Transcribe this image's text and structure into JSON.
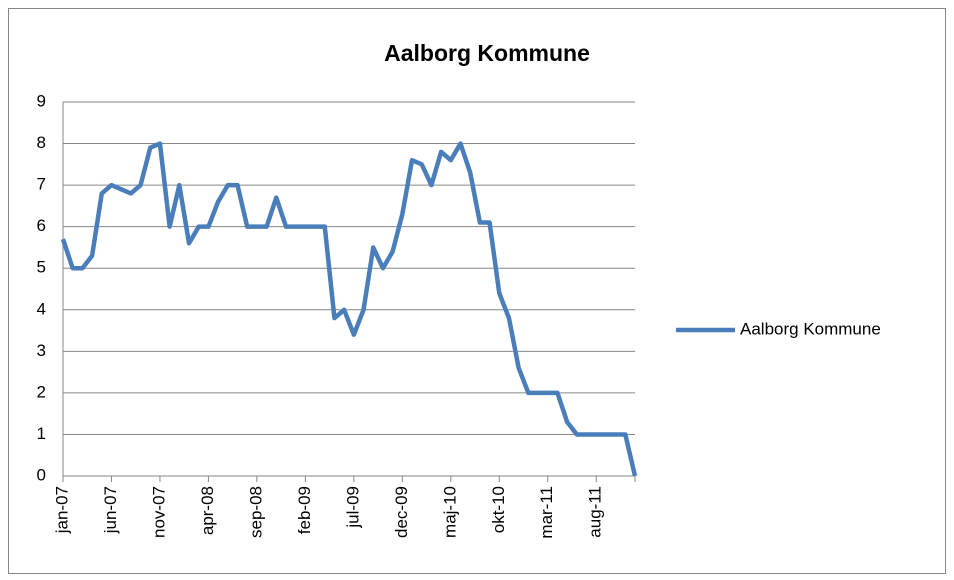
{
  "chart_data": {
    "type": "line",
    "title": "Aalborg Kommune",
    "categories": [
      "jan-07",
      null,
      null,
      null,
      null,
      "jun-07",
      null,
      null,
      null,
      null,
      "nov-07",
      null,
      null,
      null,
      null,
      "apr-08",
      null,
      null,
      null,
      null,
      "sep-08",
      null,
      null,
      null,
      null,
      "feb-09",
      null,
      null,
      null,
      null,
      "jul-09",
      null,
      null,
      null,
      null,
      "dec-09",
      null,
      null,
      null,
      null,
      "maj-10",
      null,
      null,
      null,
      null,
      "okt-10",
      null,
      null,
      null,
      null,
      "mar-11",
      null,
      null,
      null,
      null,
      "aug-11",
      null,
      null,
      null,
      null
    ],
    "series": [
      {
        "name": "Aalborg Kommune",
        "color": "#4a7ebb",
        "values": [
          5.7,
          5.0,
          5.0,
          5.3,
          6.8,
          7.0,
          6.9,
          6.8,
          7.0,
          7.9,
          8.0,
          6.0,
          7.0,
          5.6,
          6.0,
          6.0,
          6.6,
          7.0,
          7.0,
          6.0,
          6.0,
          6.0,
          6.7,
          6.0,
          6.0,
          6.0,
          6.0,
          6.0,
          3.8,
          4.0,
          3.4,
          4.0,
          5.5,
          5.0,
          5.4,
          6.3,
          7.6,
          7.5,
          7.0,
          7.8,
          7.6,
          8.0,
          7.3,
          6.1,
          6.1,
          4.4,
          3.8,
          2.6,
          2.0,
          2.0,
          2.0,
          2.0,
          1.3,
          1.0,
          1.0,
          1.0,
          1.0,
          1.0,
          1.0,
          0
        ]
      }
    ],
    "ylim": [
      0,
      9
    ],
    "yticks": [
      0,
      1,
      2,
      3,
      4,
      5,
      6,
      7,
      8,
      9
    ],
    "grid": true,
    "legend": "right"
  }
}
